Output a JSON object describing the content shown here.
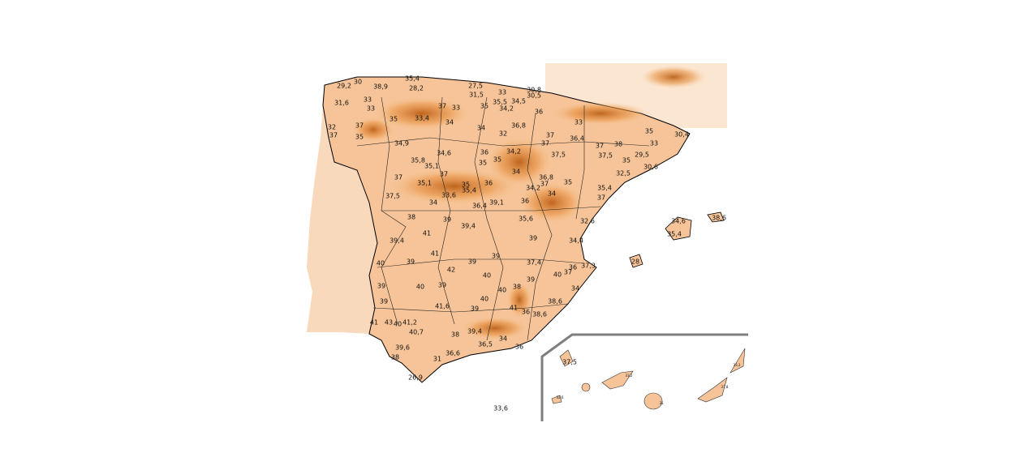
{
  "labels": [
    "30",
    "35,4",
    "29,2",
    "38,9",
    "28,2",
    "27,5",
    "33",
    "30,8",
    "31,5",
    "30,5",
    "31,6",
    "33",
    "33",
    "37",
    "33",
    "35",
    "35,5",
    "34,5",
    "34,2",
    "36",
    "33",
    "35",
    "33,4",
    "34",
    "34",
    "32",
    "36,8",
    "37",
    "32",
    "37",
    "35",
    "37",
    "36,4",
    "37",
    "37",
    "38",
    "35",
    "33",
    "30,4",
    "34,9",
    "34,6",
    "36",
    "34,2",
    "35",
    "37,5",
    "37,5",
    "29,5",
    "35",
    "30,6",
    "35,8",
    "35,1",
    "35",
    "37",
    "34",
    "32,5",
    "37",
    "35,1",
    "35",
    "36",
    "35,4",
    "36,8",
    "37",
    "35",
    "34,2",
    "34",
    "35,4",
    "37",
    "37,5",
    "33,6",
    "34",
    "39,1",
    "36",
    "36,4",
    "38",
    "39",
    "35,6",
    "32,6",
    "34,6",
    "38,6",
    "39,4",
    "41",
    "35,4",
    "39",
    "34,4",
    "39,4",
    "40",
    "39",
    "41",
    "39",
    "39",
    "37,4",
    "28",
    "36",
    "37",
    "37,3",
    "42",
    "40",
    "39",
    "40",
    "39",
    "40",
    "39",
    "40",
    "38",
    "34",
    "39",
    "40",
    "41,6",
    "41",
    "38,6",
    "36",
    "38,6",
    "39",
    "41",
    "43",
    "40",
    "41,2",
    "40,7",
    "38",
    "39,4",
    "34",
    "36,5",
    "36",
    "39,6",
    "36,6",
    "31",
    "38",
    "26,9",
    "33,6",
    "37,5",
    "33,2",
    "33,3",
    "32,6",
    "31",
    "37,8"
  ]
}
